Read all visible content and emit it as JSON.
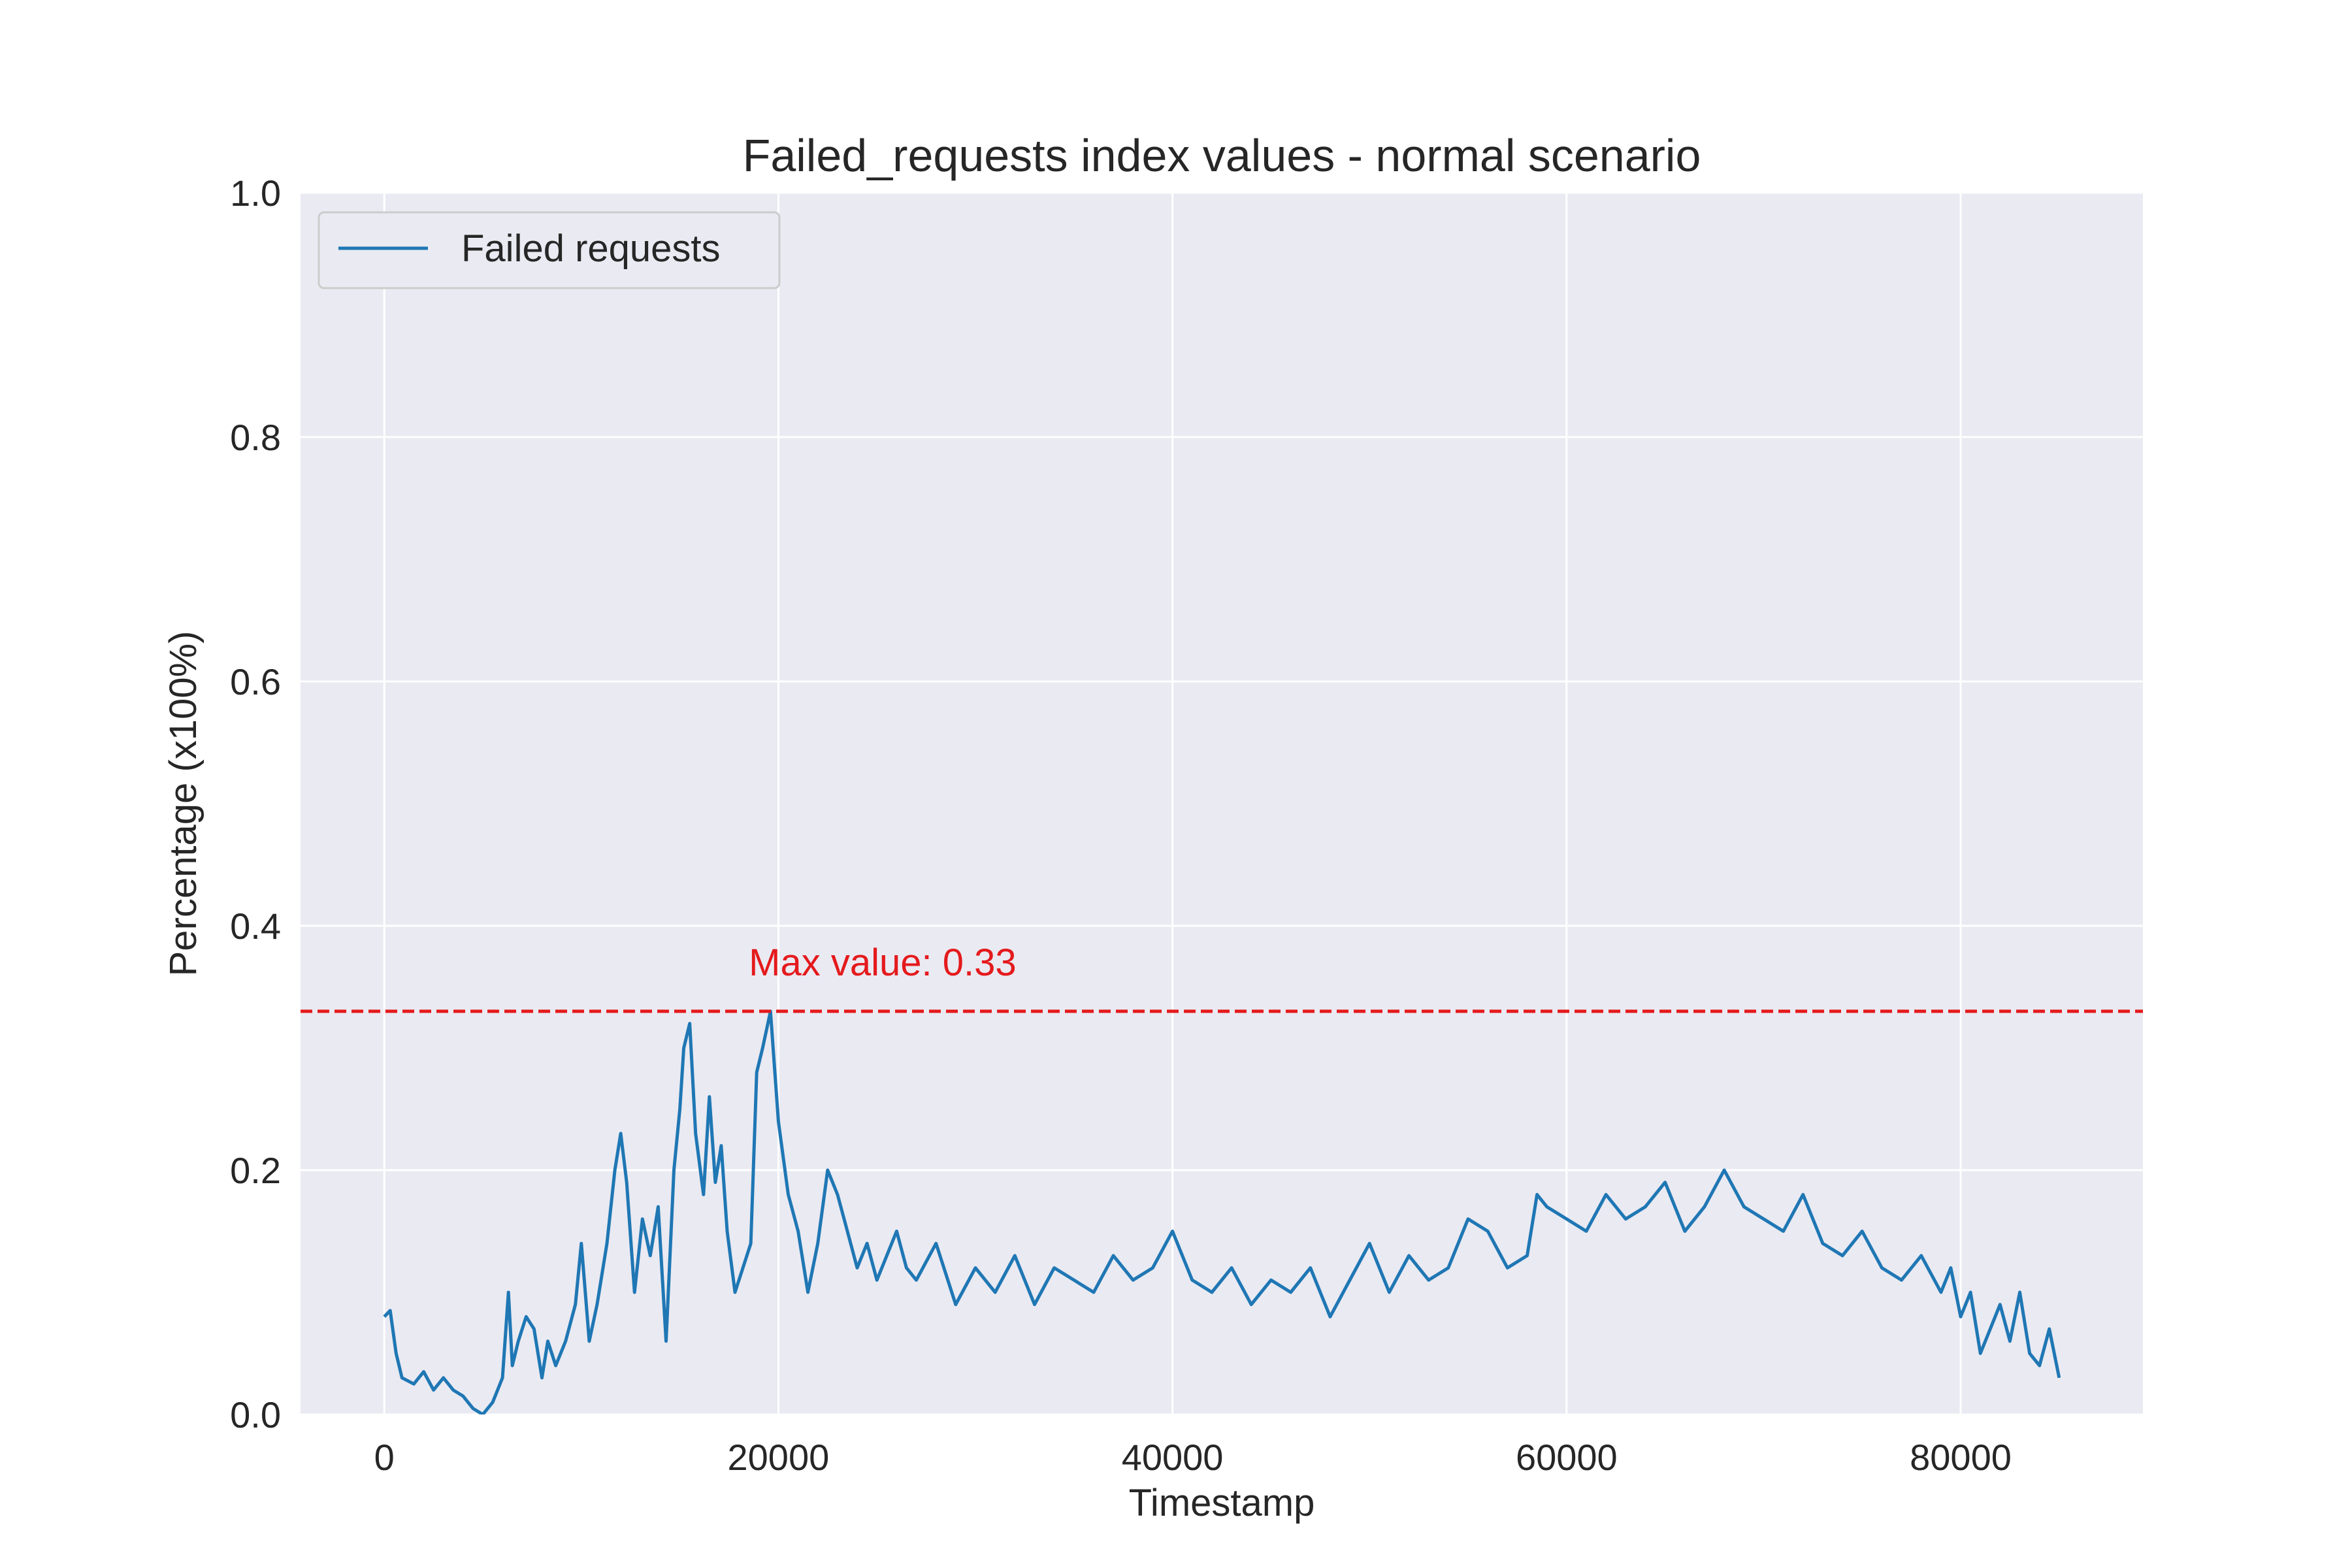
{
  "chart_data": {
    "type": "line",
    "title": "Failed_requests index values - normal scenario",
    "xlabel": "Timestamp",
    "ylabel": "Percentage (x100%)",
    "xlim": [
      -4250,
      89250
    ],
    "ylim": [
      0.0,
      1.0
    ],
    "xticks": [
      0,
      20000,
      40000,
      60000,
      80000
    ],
    "xtick_labels": [
      "0",
      "20000",
      "40000",
      "60000",
      "80000"
    ],
    "yticks": [
      0.0,
      0.2,
      0.4,
      0.6,
      0.8,
      1.0
    ],
    "ytick_labels": [
      "0.0",
      "0.2",
      "0.4",
      "0.6",
      "0.8",
      "1.0"
    ],
    "grid": true,
    "legend_position": "upper-left",
    "legend_label": "Failed requests",
    "series_color": "#1f77b4",
    "background_color": "#eaeaf2",
    "grid_color": "#ffffff",
    "series": [
      {
        "name": "Failed requests",
        "x": [
          0,
          300,
          600,
          900,
          1500,
          2000,
          2500,
          3000,
          3500,
          4000,
          4500,
          5000,
          5500,
          6000,
          6300,
          6500,
          6800,
          7200,
          7600,
          8000,
          8300,
          8700,
          9200,
          9700,
          10000,
          10400,
          10800,
          11300,
          11700,
          12000,
          12300,
          12700,
          13100,
          13500,
          13900,
          14300,
          14700,
          15000,
          15200,
          15500,
          15800,
          16200,
          16500,
          16800,
          17100,
          17400,
          17800,
          18200,
          18600,
          18900,
          19200,
          19600,
          20000,
          20500,
          21000,
          21500,
          22000,
          22500,
          23000,
          23500,
          24000,
          24500,
          25000,
          25500,
          26000,
          26500,
          27000,
          28000,
          29000,
          30000,
          31000,
          32000,
          33000,
          34000,
          35000,
          36000,
          37000,
          38000,
          39000,
          40000,
          41000,
          42000,
          43000,
          44000,
          45000,
          46000,
          47000,
          48000,
          49000,
          50000,
          51000,
          52000,
          53000,
          54000,
          55000,
          56000,
          57000,
          58000,
          58500,
          59000,
          60000,
          61000,
          62000,
          63000,
          64000,
          65000,
          66000,
          67000,
          68000,
          69000,
          70000,
          71000,
          72000,
          73000,
          74000,
          75000,
          76000,
          77000,
          78000,
          79000,
          79500,
          80000,
          80500,
          81000,
          81500,
          82000,
          82500,
          83000,
          83500,
          84000,
          84500,
          85000
        ],
        "y": [
          0.08,
          0.085,
          0.05,
          0.03,
          0.025,
          0.035,
          0.02,
          0.03,
          0.02,
          0.015,
          0.005,
          0.0,
          0.01,
          0.03,
          0.1,
          0.04,
          0.06,
          0.08,
          0.07,
          0.03,
          0.06,
          0.04,
          0.06,
          0.09,
          0.14,
          0.06,
          0.09,
          0.14,
          0.2,
          0.23,
          0.19,
          0.1,
          0.16,
          0.13,
          0.17,
          0.06,
          0.2,
          0.25,
          0.3,
          0.32,
          0.23,
          0.18,
          0.26,
          0.19,
          0.22,
          0.15,
          0.1,
          0.12,
          0.14,
          0.28,
          0.3,
          0.33,
          0.24,
          0.18,
          0.15,
          0.1,
          0.14,
          0.2,
          0.18,
          0.15,
          0.12,
          0.14,
          0.11,
          0.13,
          0.15,
          0.12,
          0.11,
          0.14,
          0.09,
          0.12,
          0.1,
          0.13,
          0.09,
          0.12,
          0.11,
          0.1,
          0.13,
          0.11,
          0.12,
          0.15,
          0.11,
          0.1,
          0.12,
          0.09,
          0.11,
          0.1,
          0.12,
          0.08,
          0.11,
          0.14,
          0.1,
          0.13,
          0.11,
          0.12,
          0.16,
          0.15,
          0.12,
          0.13,
          0.18,
          0.17,
          0.16,
          0.15,
          0.18,
          0.16,
          0.17,
          0.19,
          0.15,
          0.17,
          0.2,
          0.17,
          0.16,
          0.15,
          0.18,
          0.14,
          0.13,
          0.15,
          0.12,
          0.11,
          0.13,
          0.1,
          0.12,
          0.08,
          0.1,
          0.05,
          0.07,
          0.09,
          0.06,
          0.1,
          0.05,
          0.04,
          0.07,
          0.03
        ]
      }
    ],
    "annotation": {
      "text": "Max value: 0.33",
      "y": 0.33,
      "x": 18500,
      "color": "#e41a1c",
      "line_style": "dashed"
    }
  }
}
